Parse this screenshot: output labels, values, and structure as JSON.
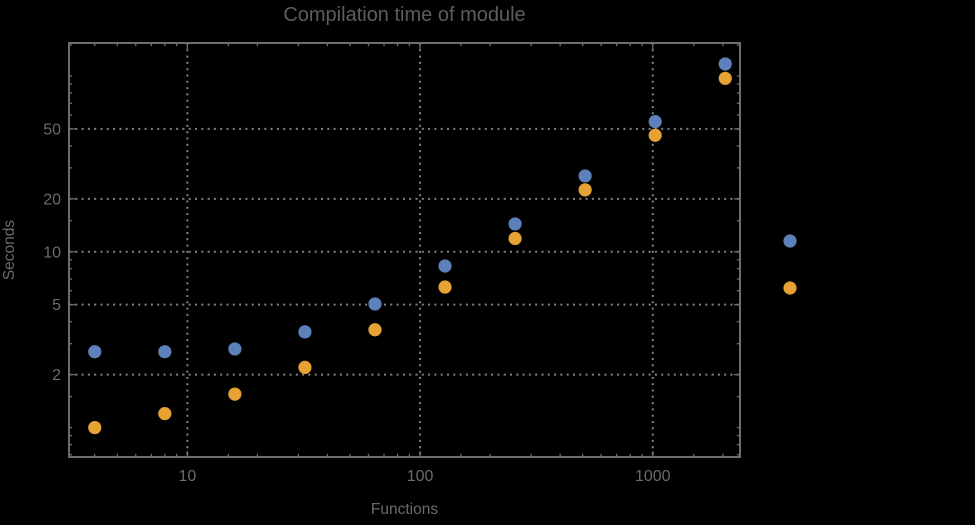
{
  "chart_data": {
    "type": "scatter",
    "title": "Compilation time of module",
    "xlabel": "Functions",
    "ylabel": "Seconds",
    "x_scale": "log",
    "y_scale": "log",
    "x_range": [
      3.1,
      2370
    ],
    "y_range": [
      0.68,
      154
    ],
    "grid": "dotted lines at labeled major ticks only",
    "legend_position": "outside right, color markers only (no visible label text)",
    "x": [
      4,
      8,
      16,
      32,
      64,
      128,
      256,
      512,
      1024,
      2048
    ],
    "series": [
      {
        "name": "series-1",
        "color": "#5d82bb",
        "values": [
          2.7,
          2.7,
          2.8,
          3.5,
          5.05,
          8.3,
          14.4,
          27,
          55,
          117
        ]
      },
      {
        "name": "series-2",
        "color": "#e6a233",
        "values": [
          1.0,
          1.2,
          1.55,
          2.2,
          3.6,
          6.3,
          11.9,
          22.5,
          46,
          97
        ]
      }
    ],
    "x_ticks": [
      {
        "value": 10,
        "label": "10"
      },
      {
        "value": 100,
        "label": "100"
      },
      {
        "value": 1000,
        "label": "1000"
      }
    ],
    "y_ticks": [
      {
        "value": 2,
        "label": "2"
      },
      {
        "value": 5,
        "label": "5"
      },
      {
        "value": 10,
        "label": "10"
      },
      {
        "value": 20,
        "label": "20"
      },
      {
        "value": 50,
        "label": "50"
      }
    ],
    "x_minor_ticks": [
      4,
      5,
      6,
      7,
      8,
      9,
      15,
      20,
      30,
      40,
      50,
      60,
      70,
      80,
      90,
      150,
      200,
      300,
      400,
      500,
      600,
      700,
      800,
      900,
      1500,
      2000
    ],
    "y_minor_ticks": [
      0.7,
      0.8,
      0.9,
      1,
      1.5,
      3,
      4,
      6,
      7,
      8,
      9,
      15,
      30,
      40,
      60,
      70,
      80,
      90,
      100,
      150
    ]
  },
  "legend": {
    "items": [
      {
        "series": "series-1",
        "color": "#5d82bb",
        "label": ""
      },
      {
        "series": "series-2",
        "color": "#e6a233",
        "label": ""
      }
    ]
  },
  "colors": {
    "background": "#000000",
    "frame": "#6e6e6e",
    "grid": "#828282",
    "title_text": "#5d5d5d",
    "label_text": "#6b6b6b"
  }
}
